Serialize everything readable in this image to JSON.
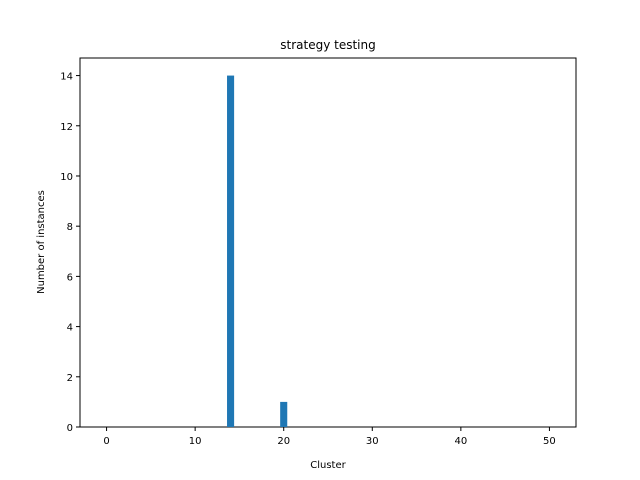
{
  "chart_data": {
    "type": "bar",
    "title": "strategy testing",
    "xlabel": "Cluster",
    "ylabel": "Number of instances",
    "xlim": [
      -3,
      53
    ],
    "ylim": [
      0,
      14.7
    ],
    "xticks": [
      "0",
      "10",
      "20",
      "30",
      "40",
      "50"
    ],
    "yticks": [
      "0",
      "2",
      "4",
      "6",
      "8",
      "10",
      "12",
      "14"
    ],
    "bar_color": "#1f77b4",
    "bar_width": 0.8,
    "grid": false,
    "bars": [
      {
        "x": 14,
        "value": 14
      },
      {
        "x": 20,
        "value": 1
      }
    ]
  }
}
